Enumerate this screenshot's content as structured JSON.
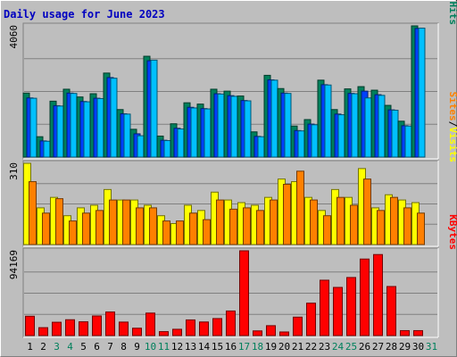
{
  "chart_data": {
    "type": "bar",
    "title": "Daily usage for June 2023",
    "days": [
      "1",
      "2",
      "3",
      "4",
      "5",
      "6",
      "7",
      "8",
      "9",
      "10",
      "11",
      "12",
      "13",
      "14",
      "15",
      "16",
      "17",
      "18",
      "19",
      "20",
      "21",
      "22",
      "23",
      "24",
      "25",
      "26",
      "27",
      "28",
      "29",
      "30",
      "31"
    ],
    "weekend_days": [
      "3",
      "4",
      "10",
      "11",
      "17",
      "18",
      "24",
      "25",
      "31"
    ],
    "panels": [
      {
        "id": "hits",
        "max_label": "4060",
        "ymax": 4060,
        "legend": [
          "Pages",
          "/",
          "Files",
          "/",
          "Hits"
        ],
        "legend_colors": [
          "#00c0ff",
          "#000000",
          "#0040ff",
          "#000000",
          "#00805c"
        ],
        "series": [
          {
            "name": "Hits",
            "color": "#00805c",
            "values": [
              1980,
              630,
              1730,
              2100,
              1860,
              1960,
              2600,
              1470,
              860,
              3120,
              650,
              1030,
              1680,
              1640,
              2100,
              2040,
              1890,
              780,
              2530,
              2120,
              960,
              1160,
              2380,
              1470,
              2110,
              2180,
              2070,
              1600,
              1110,
              4060,
              0
            ]
          },
          {
            "name": "Files",
            "color": "#0040ff",
            "values": [
              1830,
              500,
              1590,
              1980,
              1720,
              1820,
              2460,
              1340,
              720,
              2980,
              520,
              890,
              1540,
              1500,
              1960,
              1900,
              1750,
              640,
              2390,
              1980,
              820,
              1020,
              2240,
              1330,
              1970,
              2040,
              1930,
              1460,
              970,
              3980,
              0
            ]
          },
          {
            "name": "Pages",
            "color": "#00c0ff",
            "values": [
              1820,
              490,
              1580,
              1970,
              1710,
              1810,
              2440,
              1330,
              660,
              3000,
              510,
              870,
              1520,
              1490,
              1950,
              1880,
              1740,
              630,
              2380,
              1970,
              810,
              1000,
              2230,
              1310,
              1960,
              1830,
              1910,
              1450,
              960,
              3990,
              0
            ]
          }
        ]
      },
      {
        "id": "visits",
        "max_label": "310",
        "ymax": 310,
        "legend": [
          "Sites",
          "/",
          "Visits"
        ],
        "legend_colors": [
          "#ff8000",
          "#000000",
          "#ffff00"
        ],
        "series": [
          {
            "name": "Visits",
            "color": "#ffff00",
            "values": [
              310,
              140,
              180,
              110,
              140,
              150,
              210,
              170,
              170,
              150,
              110,
              80,
              150,
              130,
              200,
              170,
              160,
              150,
              180,
              250,
              240,
              180,
              130,
              210,
              180,
              290,
              140,
              190,
              170,
              160,
              0
            ]
          },
          {
            "name": "Sites",
            "color": "#ff8000",
            "values": [
              240,
              120,
              175,
              90,
              120,
              130,
              170,
              170,
              140,
              140,
              90,
              90,
              120,
              95,
              170,
              135,
              140,
              130,
              170,
              230,
              280,
              170,
              110,
              180,
              150,
              250,
              130,
              180,
              140,
              120,
              0
            ]
          }
        ]
      },
      {
        "id": "kbytes",
        "max_label": "94169",
        "ymax": 94169,
        "legend": [
          "KBytes"
        ],
        "legend_colors": [
          "#ff0000"
        ],
        "series": [
          {
            "name": "KBytes",
            "color": "#ff0000",
            "values": [
              21500,
              8800,
              14800,
              17600,
              15300,
              21800,
              26200,
              15000,
              8200,
              25000,
              4400,
              7000,
              17400,
              15100,
              18900,
              27300,
              94169,
              5200,
              11000,
              4000,
              20500,
              36000,
              61500,
              53500,
              64500,
              85000,
              90000,
              54500,
              5500,
              5500,
              0
            ]
          }
        ]
      }
    ]
  },
  "colors": {
    "background": "#bebebe",
    "frame": "#ffffff",
    "panel_dark": "#808080",
    "grid": "#808080"
  }
}
